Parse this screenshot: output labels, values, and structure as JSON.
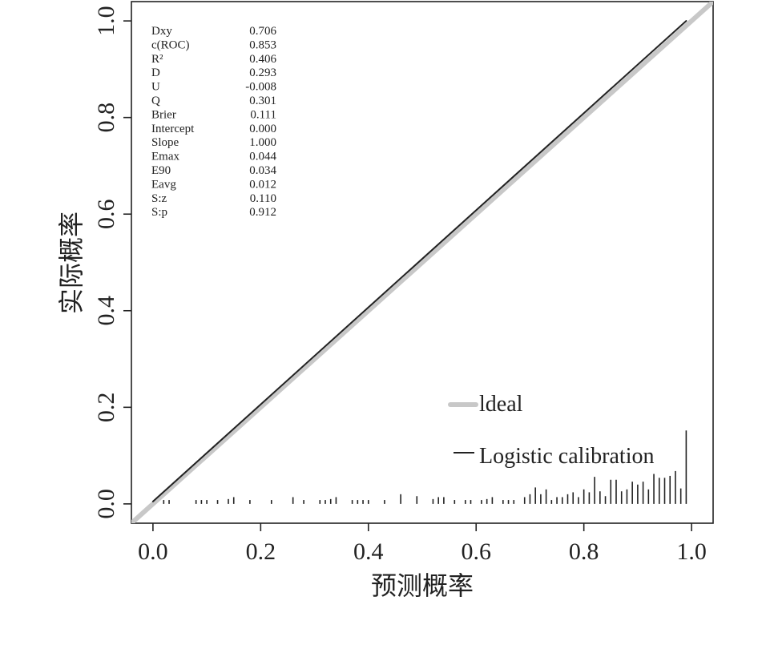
{
  "chart_data": {
    "type": "line",
    "xlabel": "预测概率",
    "ylabel": "实际概率",
    "xlim": [
      -0.04,
      1.04
    ],
    "ylim": [
      -0.04,
      1.04
    ],
    "xticks": [
      "0.0",
      "0.2",
      "0.4",
      "0.6",
      "0.8",
      "1.0"
    ],
    "yticks": [
      "0.0",
      "0.2",
      "0.4",
      "0.6",
      "0.8",
      "1.0"
    ],
    "grid": false,
    "legend_position": "bottom-right",
    "series": [
      {
        "name": "Ideal",
        "x": [
          -0.04,
          1.04
        ],
        "y": [
          -0.04,
          1.04
        ],
        "color": "#c8c8c8"
      },
      {
        "name": "Logistic calibration",
        "x": [
          0.0,
          0.99
        ],
        "y": [
          0.005,
          1.0
        ],
        "color": "#222222"
      }
    ],
    "legend": [
      {
        "label": "ldeal",
        "color": "#c8c8c8"
      },
      {
        "label": "Logistic calibration",
        "color": "#222222"
      }
    ],
    "stats": [
      {
        "label": "Dxy",
        "value": "0.706"
      },
      {
        "label": "c(ROC)",
        "value": "0.853"
      },
      {
        "label": "R²",
        "value": "0.406"
      },
      {
        "label": "D",
        "value": "0.293"
      },
      {
        "label": "U",
        "value": "-0.008"
      },
      {
        "label": "Q",
        "value": "0.301"
      },
      {
        "label": "Brier",
        "value": "0.111"
      },
      {
        "label": "Intercept",
        "value": "0.000"
      },
      {
        "label": "Slope",
        "value": "1.000"
      },
      {
        "label": "Emax",
        "value": "0.044"
      },
      {
        "label": "E90",
        "value": "0.034"
      },
      {
        "label": "Eavg",
        "value": "0.012"
      },
      {
        "label": "S:z",
        "value": "0.110"
      },
      {
        "label": "S:p",
        "value": "0.912"
      }
    ],
    "rug": {
      "base": 0.0,
      "x": [
        0.02,
        0.03,
        0.08,
        0.09,
        0.1,
        0.12,
        0.14,
        0.15,
        0.18,
        0.22,
        0.26,
        0.28,
        0.31,
        0.32,
        0.33,
        0.34,
        0.37,
        0.38,
        0.39,
        0.4,
        0.43,
        0.46,
        0.49,
        0.52,
        0.53,
        0.54,
        0.56,
        0.58,
        0.59,
        0.61,
        0.62,
        0.63,
        0.65,
        0.66,
        0.67,
        0.69,
        0.7,
        0.71,
        0.72,
        0.73,
        0.74,
        0.75,
        0.76,
        0.77,
        0.78,
        0.79,
        0.8,
        0.81,
        0.82,
        0.83,
        0.84,
        0.85,
        0.86,
        0.87,
        0.88,
        0.89,
        0.9,
        0.91,
        0.92,
        0.93,
        0.94,
        0.95,
        0.96,
        0.97,
        0.98,
        0.99
      ],
      "h": [
        0.008,
        0.008,
        0.008,
        0.008,
        0.008,
        0.008,
        0.01,
        0.014,
        0.008,
        0.008,
        0.014,
        0.008,
        0.008,
        0.008,
        0.01,
        0.014,
        0.008,
        0.008,
        0.008,
        0.008,
        0.008,
        0.02,
        0.016,
        0.01,
        0.014,
        0.014,
        0.008,
        0.008,
        0.008,
        0.008,
        0.01,
        0.014,
        0.008,
        0.008,
        0.008,
        0.014,
        0.02,
        0.034,
        0.02,
        0.03,
        0.008,
        0.014,
        0.014,
        0.02,
        0.024,
        0.014,
        0.03,
        0.024,
        0.056,
        0.026,
        0.016,
        0.05,
        0.05,
        0.026,
        0.03,
        0.046,
        0.04,
        0.046,
        0.03,
        0.062,
        0.054,
        0.054,
        0.058,
        0.068,
        0.032,
        0.152
      ]
    }
  }
}
